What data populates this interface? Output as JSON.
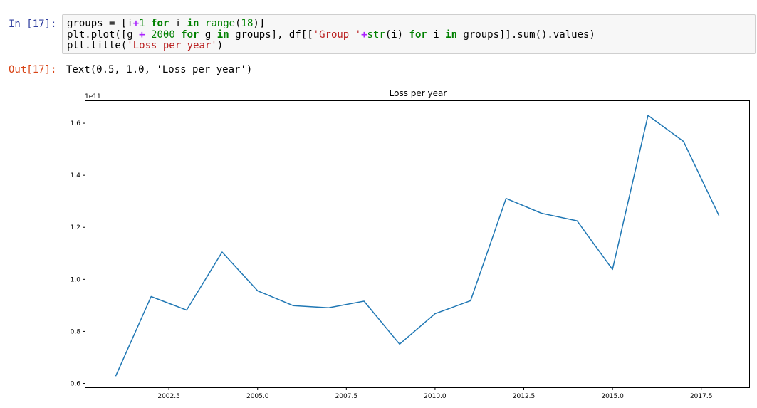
{
  "cell": {
    "in_prompt": "In [17]:",
    "out_prompt": "Out[17]:",
    "code_lines": [
      [
        [
          "",
          "groups = [i"
        ],
        [
          "op",
          "+"
        ],
        [
          "num",
          "1"
        ],
        [
          "",
          " "
        ],
        [
          "kw",
          "for"
        ],
        [
          "",
          " i "
        ],
        [
          "kw",
          "in"
        ],
        [
          "",
          " "
        ],
        [
          "num",
          "range"
        ],
        [
          "",
          "("
        ],
        [
          "num",
          "18"
        ],
        [
          "",
          ")]"
        ]
      ],
      [
        [
          "",
          "plt.plot([g "
        ],
        [
          "op",
          "+"
        ],
        [
          "",
          " "
        ],
        [
          "num",
          "2000"
        ],
        [
          "",
          " "
        ],
        [
          "kw",
          "for"
        ],
        [
          "",
          " g "
        ],
        [
          "kw",
          "in"
        ],
        [
          "",
          " groups], df[["
        ],
        [
          "str",
          "'Group '"
        ],
        [
          "op",
          "+"
        ],
        [
          "num",
          "str"
        ],
        [
          "",
          "(i) "
        ],
        [
          "kw",
          "for"
        ],
        [
          "",
          " i "
        ],
        [
          "kw",
          "in"
        ],
        [
          "",
          " groups]].sum().values)"
        ]
      ],
      [
        [
          "",
          "plt.title("
        ],
        [
          "str",
          "'Loss per year'"
        ],
        [
          "",
          ")"
        ]
      ]
    ],
    "output_text": "Text(0.5, 1.0, 'Loss per year')"
  },
  "chart_data": {
    "type": "line",
    "title": "Loss per year",
    "xlabel": "",
    "ylabel": "",
    "offset_text": "1e11",
    "xlim": [
      2000.15,
      2018.85
    ],
    "ylim": [
      0.585,
      1.685
    ],
    "xticks": [
      2002.5,
      2005.0,
      2007.5,
      2010.0,
      2012.5,
      2015.0,
      2017.5
    ],
    "xtick_labels": [
      "2002.5",
      "2005.0",
      "2007.5",
      "2010.0",
      "2012.5",
      "2015.0",
      "2017.5"
    ],
    "yticks": [
      0.6,
      0.8,
      1.0,
      1.2,
      1.4,
      1.6
    ],
    "ytick_labels": [
      "0.6",
      "0.8",
      "1.0",
      "1.2",
      "1.4",
      "1.6"
    ],
    "grid": false,
    "series": [
      {
        "color": "#1f77b4",
        "x": [
          2001,
          2002,
          2003,
          2004,
          2005,
          2006,
          2007,
          2008,
          2009,
          2010,
          2011,
          2012,
          2013,
          2014,
          2015,
          2016,
          2017,
          2018
        ],
        "y": [
          0.628,
          0.934,
          0.882,
          1.105,
          0.956,
          0.899,
          0.891,
          0.916,
          0.751,
          0.868,
          0.918,
          1.311,
          1.254,
          1.225,
          1.038,
          1.63,
          1.53,
          1.245
        ]
      }
    ]
  }
}
